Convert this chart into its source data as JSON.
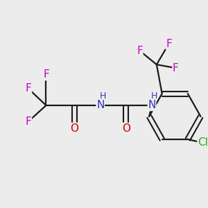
{
  "background_color": "#ececec",
  "colors": {
    "F": "#cc00cc",
    "O": "#cc0000",
    "N": "#3333bb",
    "Cl": "#22aa22",
    "bond": "#1a1a1a"
  },
  "figsize": [
    3.0,
    3.0
  ],
  "dpi": 100
}
